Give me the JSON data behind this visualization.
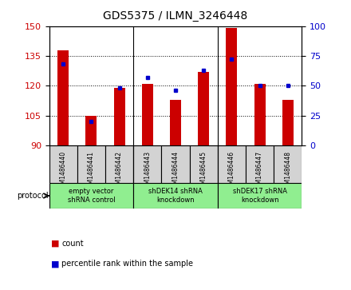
{
  "title": "GDS5375 / ILMN_3246448",
  "samples": [
    "GSM1486440",
    "GSM1486441",
    "GSM1486442",
    "GSM1486443",
    "GSM1486444",
    "GSM1486445",
    "GSM1486446",
    "GSM1486447",
    "GSM1486448"
  ],
  "counts": [
    138,
    105,
    119,
    121,
    113,
    127,
    149,
    121,
    113
  ],
  "percentiles": [
    68,
    20,
    48,
    57,
    46,
    63,
    72,
    50,
    50
  ],
  "ylim_left": [
    90,
    150
  ],
  "ylim_right": [
    0,
    100
  ],
  "yticks_left": [
    90,
    105,
    120,
    135,
    150
  ],
  "yticks_right": [
    0,
    25,
    50,
    75,
    100
  ],
  "groups": [
    {
      "label": "empty vector\nshRNA control",
      "start": 0,
      "end": 3
    },
    {
      "label": "shDEK14 shRNA\nknockdown",
      "start": 3,
      "end": 6
    },
    {
      "label": "shDEK17 shRNA\nknockdown",
      "start": 6,
      "end": 9
    }
  ],
  "bar_color": "#CC0000",
  "dot_color": "#0000CC",
  "grid_color": "#000000",
  "plot_bg": "#FFFFFF",
  "cell_bg": "#D3D3D3",
  "group_bg": "#90EE90",
  "left_axis_color": "#CC0000",
  "right_axis_color": "#0000CC",
  "protocol_label": "protocol",
  "legend_count": "count",
  "legend_pct": "percentile rank within the sample",
  "group_dividers": [
    3,
    6
  ],
  "bar_width": 0.4
}
